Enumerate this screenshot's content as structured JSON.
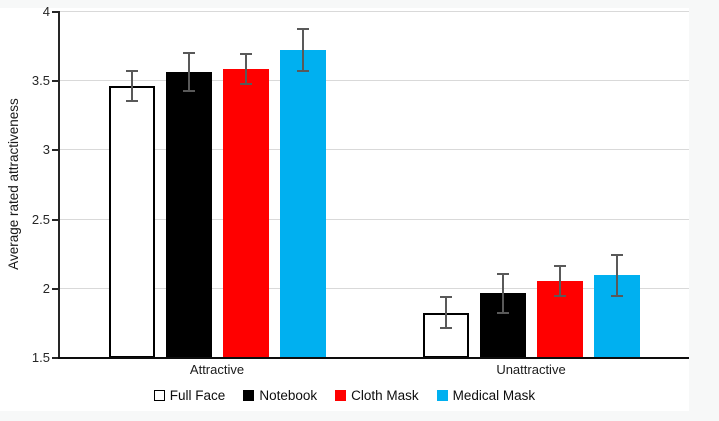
{
  "page": {
    "background": "#f7f8f8",
    "panel_background": "#ffffff"
  },
  "chart_data": {
    "type": "bar",
    "title": "",
    "xlabel": "",
    "ylabel": "Average rated attractiveness",
    "categories": [
      "Attractive",
      "Unattractive"
    ],
    "series": [
      {
        "name": "Full Face",
        "values": [
          3.46,
          1.82
        ],
        "errors": [
          0.11,
          0.11
        ],
        "fill": "#ffffff",
        "border": "#000000"
      },
      {
        "name": "Notebook",
        "values": [
          3.56,
          1.96
        ],
        "errors": [
          0.14,
          0.14
        ],
        "fill": "#000000",
        "border": "#000000"
      },
      {
        "name": "Cloth Mask",
        "values": [
          3.58,
          2.05
        ],
        "errors": [
          0.11,
          0.11
        ],
        "fill": "#ff0000",
        "border": "#ff0000"
      },
      {
        "name": "Medical Mask",
        "values": [
          3.72,
          2.09
        ],
        "errors": [
          0.15,
          0.15
        ],
        "fill": "#00b0f0",
        "border": "#00b0f0"
      }
    ],
    "ylim": [
      1.5,
      4
    ],
    "yticks": [
      4,
      3.5,
      3,
      2.5,
      2,
      1.5
    ],
    "ytick_labels": [
      "4",
      "3.5",
      "3",
      "2.5",
      "2",
      "1.5"
    ],
    "grid": true,
    "legend_position": "bottom",
    "colors": {
      "error_bar": "#595959",
      "gridline": "#d9d9d9",
      "axis": "#262626"
    }
  }
}
